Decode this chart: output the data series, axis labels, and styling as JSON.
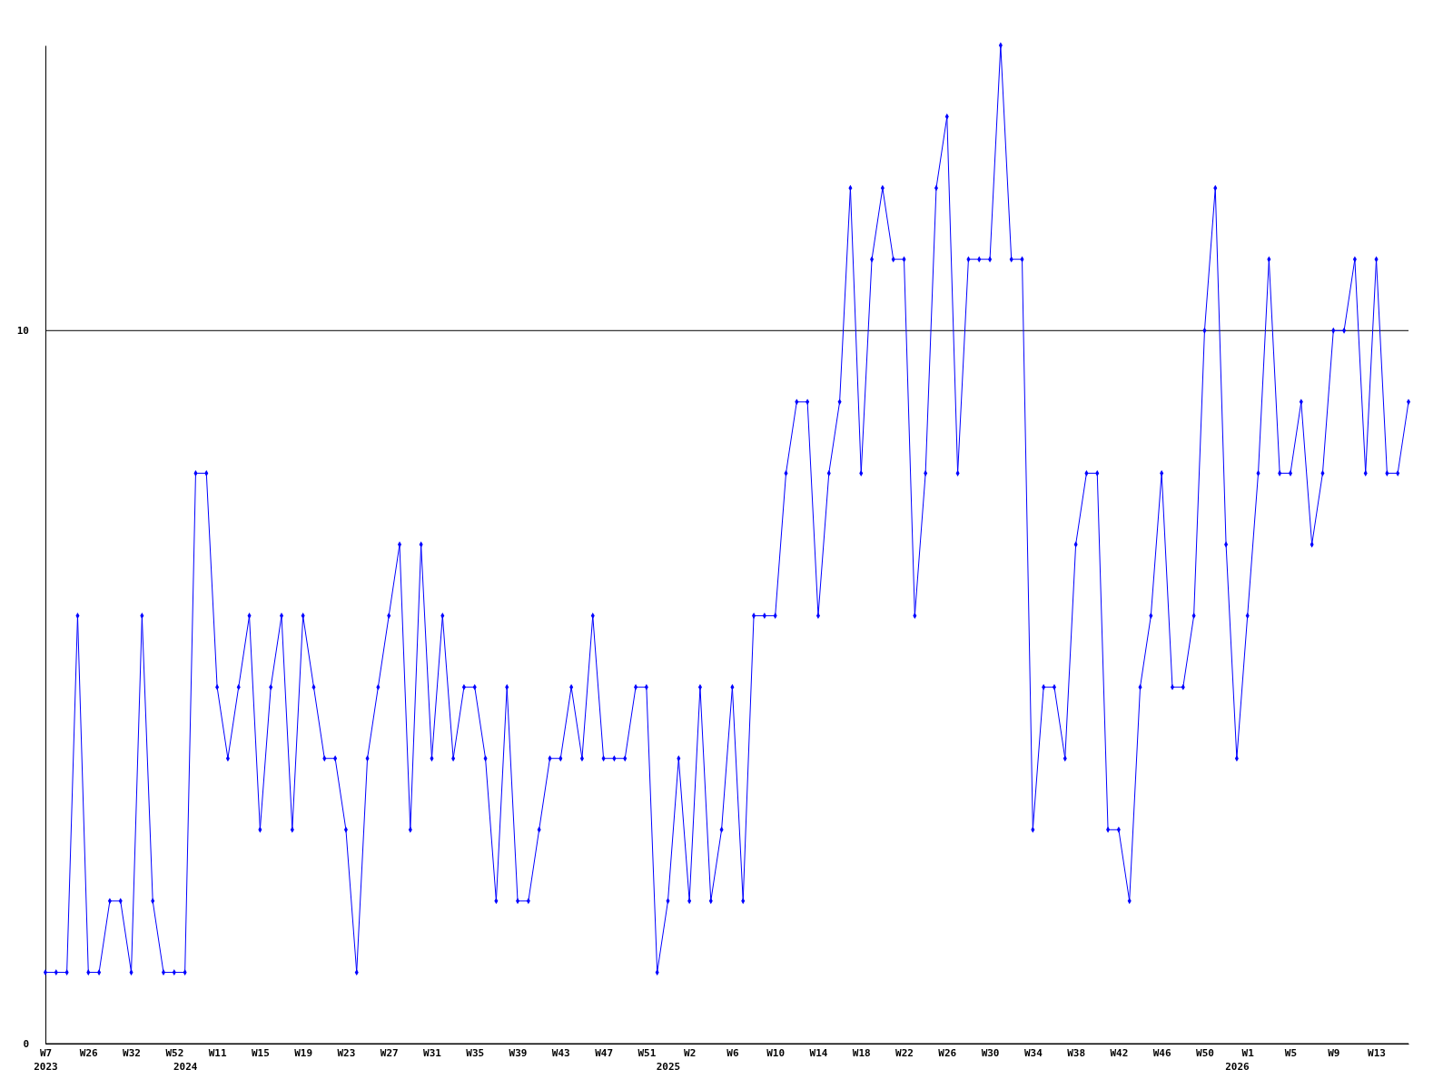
{
  "chart_data": {
    "type": "line",
    "categories": [
      "W7\n2023",
      null,
      null,
      null,
      "W26",
      null,
      null,
      null,
      "W32",
      null,
      null,
      null,
      "W52",
      "\n2024",
      null,
      null,
      "W11",
      null,
      null,
      null,
      "W15",
      null,
      null,
      null,
      "W19",
      null,
      null,
      null,
      "W23",
      null,
      null,
      null,
      "W27",
      null,
      null,
      null,
      "W31",
      null,
      null,
      null,
      "W35",
      null,
      null,
      null,
      "W39",
      null,
      null,
      null,
      "W43",
      null,
      null,
      null,
      "W47",
      null,
      null,
      null,
      "W51",
      null,
      "\n2025",
      null,
      "W2",
      null,
      null,
      null,
      "W6",
      null,
      null,
      null,
      "W10",
      null,
      null,
      null,
      "W14",
      null,
      null,
      null,
      "W18",
      null,
      null,
      null,
      "W22",
      null,
      null,
      null,
      "W26",
      null,
      null,
      null,
      "W30",
      null,
      null,
      null,
      "W34",
      null,
      null,
      null,
      "W38",
      null,
      null,
      null,
      "W42",
      null,
      null,
      null,
      "W46",
      null,
      null,
      null,
      "W50",
      null,
      null,
      "\n2026",
      "W1",
      null,
      null,
      null,
      "W5",
      null,
      null,
      null,
      "W9",
      null,
      null,
      null,
      "W13",
      null,
      null,
      null
    ],
    "series": [
      {
        "color": "#0000ff",
        "values": [
          1,
          1,
          1,
          6,
          1,
          1,
          2,
          2,
          1,
          6,
          2,
          1,
          1,
          1,
          8,
          8,
          5,
          4,
          5,
          6,
          3,
          5,
          6,
          3,
          6,
          5,
          4,
          4,
          3,
          1,
          4,
          5,
          6,
          7,
          3,
          7,
          4,
          6,
          4,
          5,
          5,
          4,
          2,
          5,
          2,
          2,
          3,
          4,
          4,
          5,
          4,
          6,
          4,
          4,
          4,
          5,
          5,
          1,
          2,
          4,
          2,
          5,
          2,
          3,
          5,
          2,
          6,
          6,
          6,
          8,
          9,
          9,
          6,
          8,
          9,
          12,
          8,
          11,
          12,
          11,
          11,
          6,
          8,
          12,
          13,
          8,
          11,
          11,
          11,
          14,
          11,
          11,
          3,
          5,
          5,
          4,
          7,
          8,
          8,
          3,
          3,
          2,
          5,
          6,
          8,
          5,
          5,
          6,
          10,
          12,
          7,
          4,
          6,
          8,
          11,
          8,
          8,
          9,
          7,
          8,
          10,
          10,
          11,
          8,
          11,
          8,
          8,
          9
        ]
      }
    ],
    "ylim": [
      0,
      14
    ],
    "yticks": [
      0,
      10
    ],
    "grid": "y",
    "marker": "diamond",
    "line_style": "solid"
  }
}
